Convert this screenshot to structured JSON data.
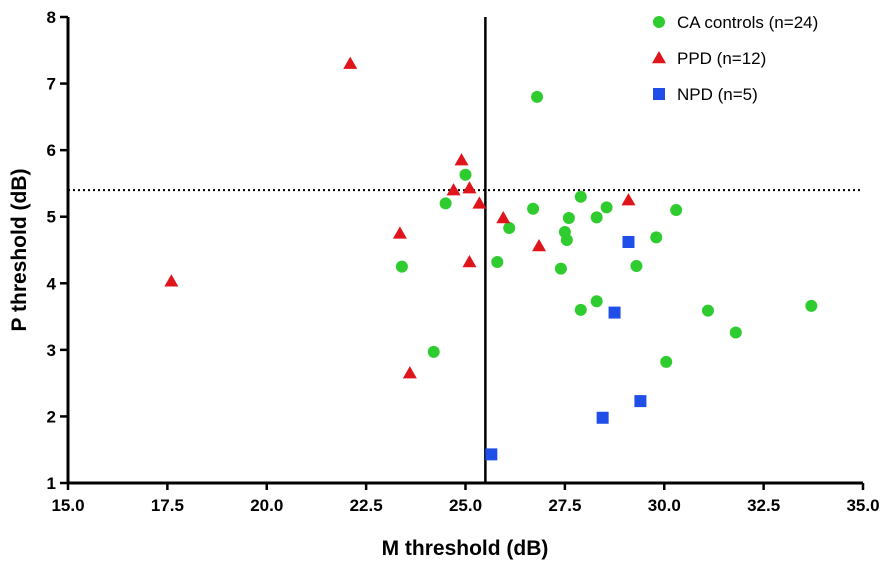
{
  "chart_data": {
    "type": "scatter",
    "xlabel": "M threshold (dB)",
    "ylabel": "P threshold (dB)",
    "xlim": [
      15.0,
      35.0
    ],
    "ylim": [
      1,
      8
    ],
    "xticks": [
      "15.0",
      "17.5",
      "20.0",
      "22.5",
      "25.0",
      "27.5",
      "30.0",
      "32.5",
      "35.0"
    ],
    "yticks": [
      "1",
      "2",
      "3",
      "4",
      "5",
      "6",
      "7",
      "8"
    ],
    "reference_lines": {
      "vertical_x": 25.5,
      "horizontal_y": 5.4
    },
    "legend_position": "top-right",
    "series": [
      {
        "name": "CA controls (n=24)",
        "marker": "circle",
        "color": "#2ecc2e",
        "points": [
          [
            26.8,
            6.8
          ],
          [
            25.0,
            5.63
          ],
          [
            24.5,
            5.2
          ],
          [
            23.4,
            4.25
          ],
          [
            24.2,
            2.97
          ],
          [
            25.8,
            4.32
          ],
          [
            26.1,
            4.83
          ],
          [
            26.7,
            5.12
          ],
          [
            27.5,
            4.77
          ],
          [
            27.55,
            4.65
          ],
          [
            27.6,
            4.98
          ],
          [
            27.4,
            4.22
          ],
          [
            27.9,
            5.3
          ],
          [
            28.3,
            4.99
          ],
          [
            28.55,
            5.14
          ],
          [
            27.9,
            3.6
          ],
          [
            28.3,
            3.73
          ],
          [
            29.3,
            4.26
          ],
          [
            29.8,
            4.69
          ],
          [
            30.3,
            5.1
          ],
          [
            30.05,
            2.82
          ],
          [
            31.1,
            3.59
          ],
          [
            31.8,
            3.26
          ],
          [
            33.7,
            3.66
          ]
        ]
      },
      {
        "name": "PPD (n=12)",
        "marker": "triangle",
        "color": "#e0151b",
        "points": [
          [
            22.1,
            7.3
          ],
          [
            17.6,
            4.03
          ],
          [
            23.35,
            4.75
          ],
          [
            23.6,
            2.65
          ],
          [
            24.7,
            5.4
          ],
          [
            24.9,
            5.85
          ],
          [
            25.1,
            5.43
          ],
          [
            25.35,
            5.2
          ],
          [
            25.1,
            4.32
          ],
          [
            25.95,
            4.98
          ],
          [
            26.85,
            4.56
          ],
          [
            29.1,
            5.25
          ]
        ]
      },
      {
        "name": "NPD (n=5)",
        "marker": "square",
        "color": "#1f4fe8",
        "points": [
          [
            25.65,
            1.43
          ],
          [
            28.45,
            1.98
          ],
          [
            29.4,
            2.23
          ],
          [
            28.75,
            3.56
          ],
          [
            29.1,
            4.62
          ]
        ]
      }
    ]
  }
}
